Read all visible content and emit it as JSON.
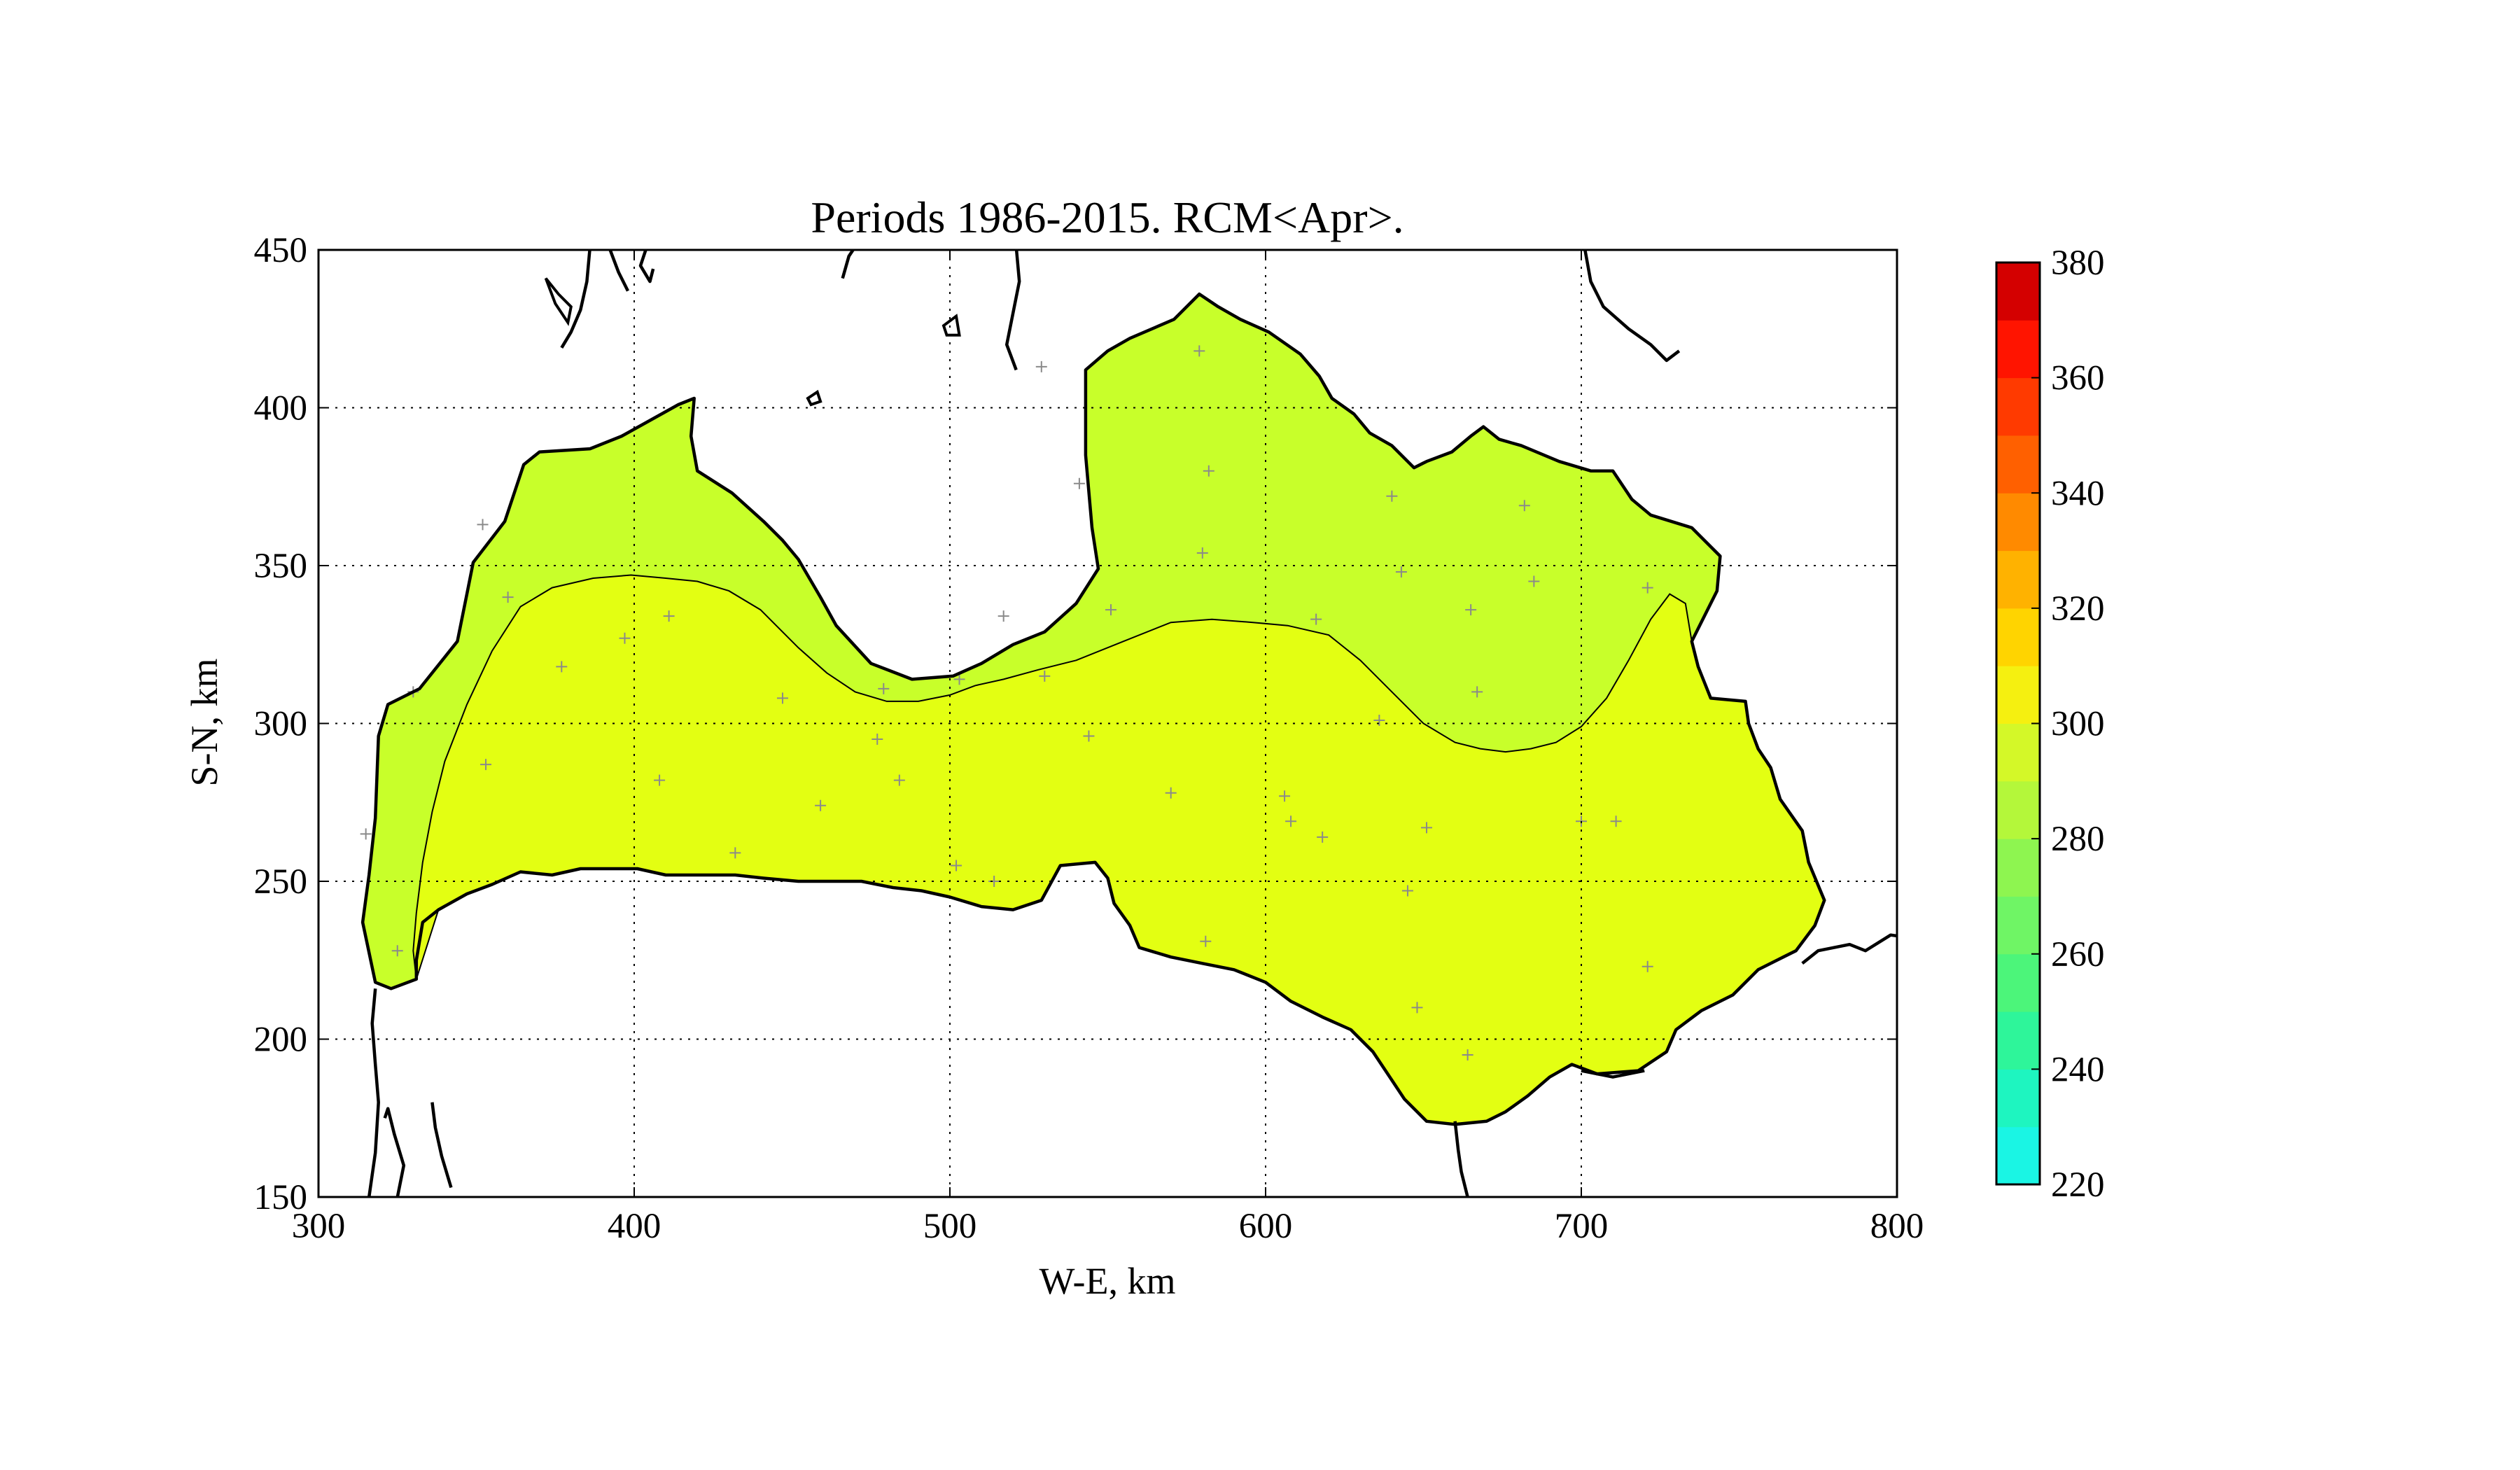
{
  "chart_data": {
    "type": "heatmap",
    "title": "Periods 1986-2015. RCM<Apr>.",
    "xlabel": "W-E, km",
    "ylabel": "S-N, km",
    "xlim": [
      300,
      800
    ],
    "ylim": [
      150,
      450
    ],
    "xticks": [
      "300",
      "400",
      "500",
      "600",
      "700",
      "800"
    ],
    "yticks": [
      "150",
      "200",
      "250",
      "300",
      "350",
      "400",
      "450"
    ],
    "grid": true,
    "colorbar": {
      "levels": [
        220,
        230,
        240,
        250,
        260,
        270,
        280,
        290,
        300,
        310,
        320,
        330,
        340,
        350,
        360,
        370,
        380
      ],
      "ticks": [
        "220",
        "240",
        "260",
        "280",
        "300",
        "320",
        "340",
        "360",
        "380"
      ],
      "colors": [
        "#1af5e4",
        "#1ef5c0",
        "#2ef59a",
        "#4cf57a",
        "#6ff565",
        "#8ef550",
        "#b4f73a",
        "#d4f828",
        "#f5f010",
        "#ffd400",
        "#ffb200",
        "#ff8a00",
        "#ff6000",
        "#ff3a00",
        "#ff1400",
        "#d40000"
      ]
    },
    "regions": [
      {
        "level_range": [
          280,
          290
        ],
        "color": "#c8ff2a",
        "location": "northern and western coastal strip"
      },
      {
        "level_range": [
          290,
          300
        ],
        "color": "#e3ff12",
        "location": "central and southern interior"
      }
    ],
    "station_markers": [
      [
        315,
        265
      ],
      [
        325,
        228
      ],
      [
        330,
        310
      ],
      [
        352,
        363
      ],
      [
        360,
        340
      ],
      [
        353,
        287
      ],
      [
        377,
        318
      ],
      [
        397,
        327
      ],
      [
        408,
        282
      ],
      [
        411,
        334
      ],
      [
        432,
        259
      ],
      [
        447,
        308
      ],
      [
        459,
        274
      ],
      [
        477,
        295
      ],
      [
        479,
        311
      ],
      [
        484,
        282
      ],
      [
        502,
        255
      ],
      [
        503,
        314
      ],
      [
        514,
        250
      ],
      [
        517,
        334
      ],
      [
        529,
        413
      ],
      [
        530,
        315
      ],
      [
        541,
        376
      ],
      [
        544,
        296
      ],
      [
        551,
        336
      ],
      [
        570,
        278
      ],
      [
        579,
        418
      ],
      [
        580,
        354
      ],
      [
        581,
        231
      ],
      [
        582,
        380
      ],
      [
        606,
        277
      ],
      [
        608,
        269
      ],
      [
        616,
        333
      ],
      [
        618,
        264
      ],
      [
        636,
        301
      ],
      [
        640,
        372
      ],
      [
        643,
        348
      ],
      [
        645,
        247
      ],
      [
        648,
        210
      ],
      [
        651,
        267
      ],
      [
        664,
        195
      ],
      [
        665,
        336
      ],
      [
        667,
        310
      ],
      [
        682,
        369
      ],
      [
        685,
        345
      ],
      [
        700,
        269
      ],
      [
        711,
        269
      ],
      [
        721,
        223
      ],
      [
        721,
        343
      ]
    ]
  }
}
